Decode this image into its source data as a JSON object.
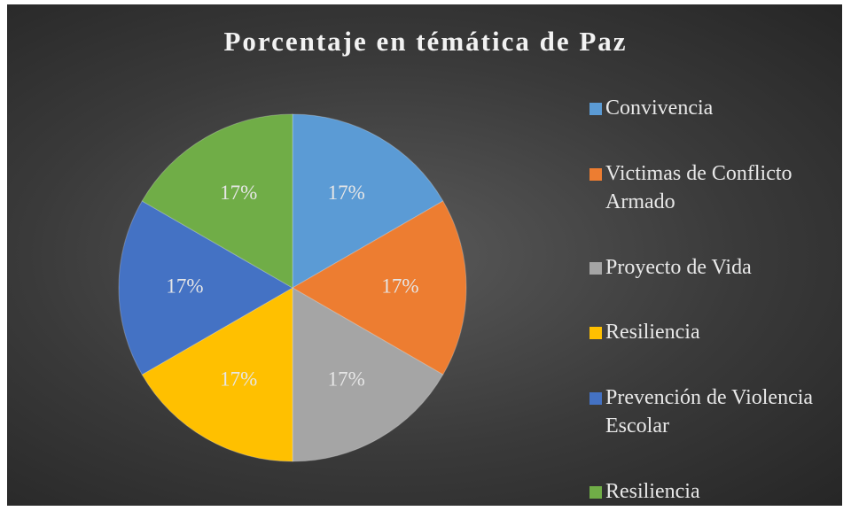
{
  "chart_data": {
    "type": "pie",
    "title": "Porcentaje en témática de Paz",
    "categories": [
      "Convivencia",
      "Victimas de Conflicto Armado",
      "Proyecto de Vida",
      "Resiliencia",
      "Prevención de Violencia Escolar",
      "Resiliencia"
    ],
    "values": [
      17,
      17,
      17,
      17,
      17,
      17
    ],
    "value_labels": [
      "17%",
      "17%",
      "17%",
      "17%",
      "17%",
      "17%"
    ],
    "colors": [
      "#5b9bd5",
      "#ed7d31",
      "#a5a5a5",
      "#ffc000",
      "#4472c4",
      "#70ad47"
    ],
    "legend": "right"
  }
}
